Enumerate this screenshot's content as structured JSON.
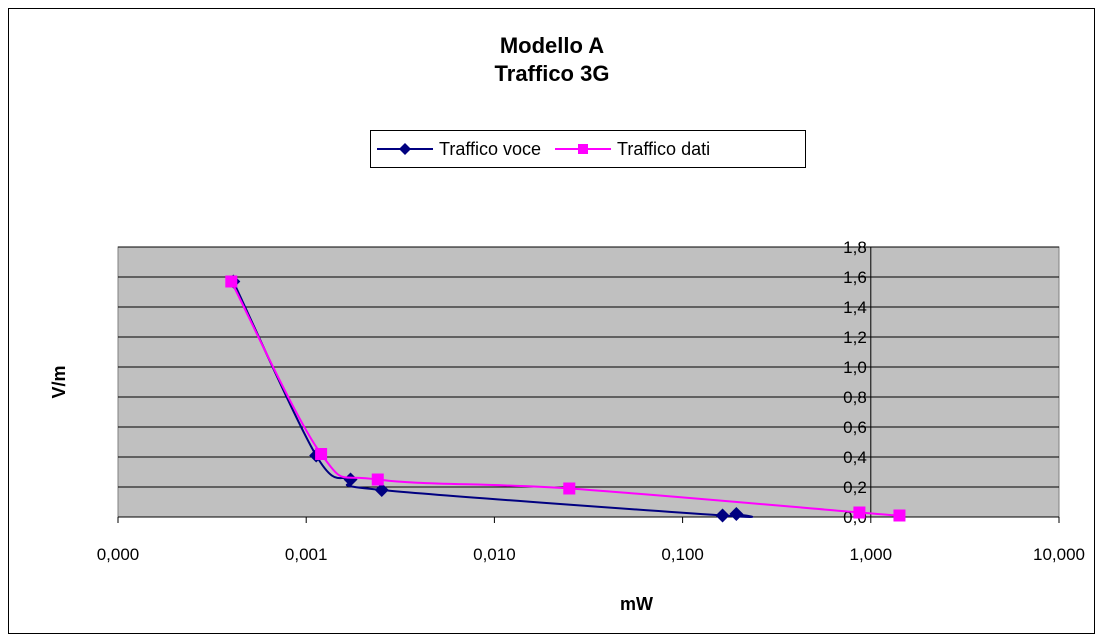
{
  "chart_data": {
    "type": "line",
    "title": [
      "Modello A",
      "Traffico 3G"
    ],
    "xlabel": "mW",
    "ylabel": "V/m",
    "x_scale": "log",
    "xlim": [
      0.0001,
      10
    ],
    "ylim": [
      0,
      1.8
    ],
    "x_ticks": [
      0.0001,
      0.001,
      0.01,
      0.1,
      1,
      10
    ],
    "x_tick_labels": [
      "0,000",
      "0,001",
      "0,010",
      "0,100",
      "1,000",
      "10,000"
    ],
    "y_ticks": [
      0,
      0.2,
      0.4,
      0.6,
      0.8,
      1.0,
      1.2,
      1.4,
      1.6,
      1.8
    ],
    "y_tick_labels": [
      "0,0",
      "0,2",
      "0,4",
      "0,6",
      "0,8",
      "1,0",
      "1,2",
      "1,4",
      "1,6",
      "1,8"
    ],
    "y_axis_position": "at x = 1,000",
    "grid": true,
    "legend_position": "top-center",
    "plot_background": "#c0c0c0",
    "series": [
      {
        "name": "Traffico voce",
        "color": "#000080",
        "marker": "diamond",
        "x": [
          0.00041,
          0.00113,
          0.00172,
          0.00252,
          0.163,
          0.193
        ],
        "y": [
          1.57,
          0.41,
          0.25,
          0.18,
          0.01,
          0.02
        ]
      },
      {
        "name": "Traffico dati",
        "color": "#ff00ff",
        "marker": "square",
        "x": [
          0.0004,
          0.0012,
          0.0024,
          0.025,
          0.87,
          1.42
        ],
        "y": [
          1.57,
          0.42,
          0.25,
          0.19,
          0.03,
          0.01
        ]
      }
    ]
  }
}
